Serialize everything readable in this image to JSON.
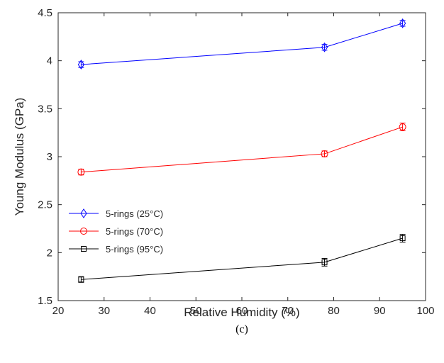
{
  "chart_data": {
    "type": "line",
    "title": "",
    "xlabel": "Relative Humidity (%)",
    "ylabel": "Young Modulus (GPa)",
    "xlim": [
      20,
      100
    ],
    "ylim": [
      1.5,
      4.5
    ],
    "xticks": [
      20,
      30,
      40,
      50,
      60,
      70,
      80,
      90,
      100
    ],
    "yticks": [
      1.5,
      2,
      2.5,
      3,
      3.5,
      4,
      4.5
    ],
    "ytick_labels": [
      "1.5",
      "2",
      "2.5",
      "3",
      "3.5",
      "4",
      "4.5"
    ],
    "grid": false,
    "legend_position": "lower-left",
    "x": [
      25,
      78,
      95
    ],
    "series": [
      {
        "name": "5-rings (25°C)",
        "marker": "diamond",
        "color": "#0000ff",
        "values": [
          3.96,
          4.14,
          4.39
        ],
        "errors": [
          0.03,
          0.03,
          0.03
        ]
      },
      {
        "name": "5-rings (70°C)",
        "marker": "circle",
        "color": "#ff0000",
        "values": [
          2.84,
          3.03,
          3.31
        ],
        "errors": [
          0.03,
          0.03,
          0.04
        ]
      },
      {
        "name": "5-rings (95°C)",
        "marker": "square",
        "color": "#000000",
        "values": [
          1.72,
          1.9,
          2.15
        ],
        "errors": [
          0.03,
          0.04,
          0.04
        ]
      }
    ],
    "caption": "(c)"
  }
}
